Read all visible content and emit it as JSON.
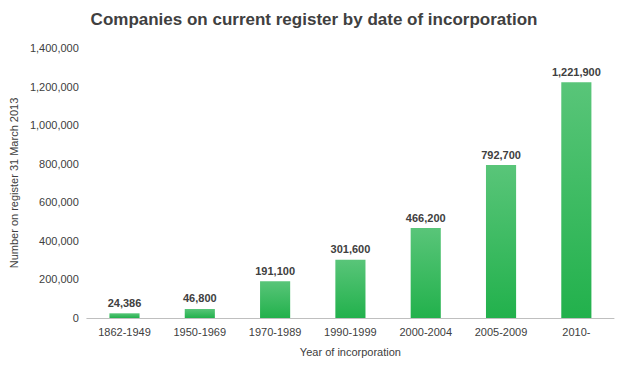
{
  "chart_data": {
    "type": "bar",
    "title": "Companies on current register by date of incorporation",
    "x_label": "Year of incorporation",
    "y_label": "Number on register 31 March 2013",
    "categories": [
      "1862-1949",
      "1950-1969",
      "1970-1989",
      "1990-1999",
      "2000-2004",
      "2005-2009",
      "2010-"
    ],
    "values": [
      24386,
      46800,
      191100,
      301600,
      466200,
      792700,
      1221900
    ],
    "value_labels": [
      "24,386",
      "46,800",
      "191,100",
      "301,600",
      "466,200",
      "792,700",
      "1,221,900"
    ],
    "color": "#22b14c",
    "ylim": [
      0,
      1400000
    ],
    "yticks": [
      0,
      {
        "value": 200000,
        "label": "200,000"
      },
      {
        "value": 400000,
        "label": "400,000"
      },
      {
        "value": 600000,
        "label": "600,000"
      },
      {
        "value": 800000,
        "label": "800,000"
      },
      {
        "value": 1000000,
        "label": "1,000,000"
      },
      {
        "value": 1200000,
        "label": "1,200,000"
      },
      {
        "value": 1400000,
        "label": "1,400,000"
      }
    ],
    "grid": false,
    "data_labels": true
  }
}
